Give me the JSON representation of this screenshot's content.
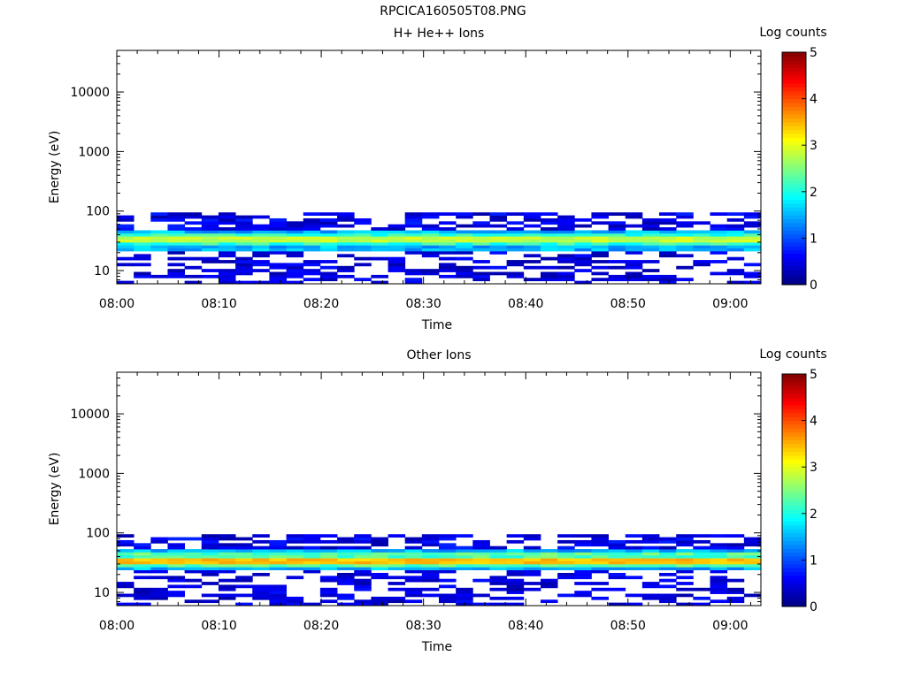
{
  "page": {
    "title": "RPCICA160505T08.PNG"
  },
  "chart_data": [
    {
      "type": "heatmap",
      "title": "H+ He++ Ions",
      "xlabel": "Time",
      "ylabel": "Energy (eV)",
      "yscale": "log",
      "ylim": [
        6,
        50000
      ],
      "xlim": [
        "08:00",
        "09:03"
      ],
      "x_ticks": [
        "08:00",
        "08:10",
        "08:20",
        "08:30",
        "08:40",
        "08:50",
        "09:00"
      ],
      "y_ticks": [
        10,
        100,
        1000,
        10000
      ],
      "colorbar": {
        "label": "Log counts",
        "range": [
          0,
          5
        ],
        "ticks": [
          0,
          1,
          2,
          3,
          4,
          5
        ],
        "colormap": "jet"
      },
      "data_summary": {
        "occupied_energy_range_eV": [
          6,
          95
        ],
        "peak_energy_eV": 33,
        "peak_log_counts": 3.0,
        "core_band_log_counts_range": [
          1.8,
          3.0
        ],
        "background_log_counts_range": [
          0.2,
          0.7
        ]
      }
    },
    {
      "type": "heatmap",
      "title": "Other Ions",
      "xlabel": "Time",
      "ylabel": "Energy (eV)",
      "yscale": "log",
      "ylim": [
        6,
        50000
      ],
      "xlim": [
        "08:00",
        "09:03"
      ],
      "x_ticks": [
        "08:00",
        "08:10",
        "08:20",
        "08:30",
        "08:40",
        "08:50",
        "09:00"
      ],
      "y_ticks": [
        10,
        100,
        1000,
        10000
      ],
      "colorbar": {
        "label": "Log counts",
        "range": [
          0,
          5
        ],
        "ticks": [
          0,
          1,
          2,
          3,
          4,
          5
        ],
        "colormap": "jet"
      },
      "data_summary": {
        "occupied_energy_range_eV": [
          6,
          95
        ],
        "peak_energy_eV": 35,
        "peak_log_counts": 3.6,
        "core_band_log_counts_range": [
          2.0,
          3.6
        ],
        "background_log_counts_range": [
          0.2,
          0.7
        ]
      }
    }
  ]
}
